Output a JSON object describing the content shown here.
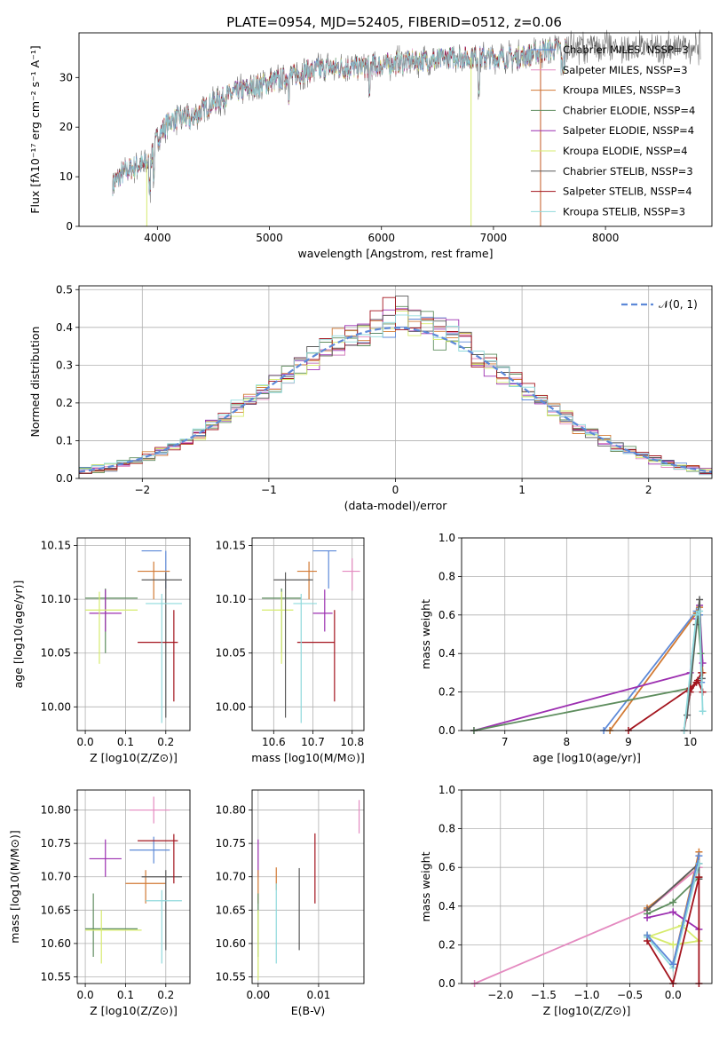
{
  "figure": {
    "title": "PLATE=0954, MJD=52405, FIBERID=0512, z=0.06"
  },
  "colors": {
    "c1": "#5d89d8",
    "c2": "#e48ac0",
    "c3": "#d27a34",
    "c4": "#5e8d5e",
    "c5": "#9c2fb0",
    "c6": "#d6eb6e",
    "c7": "#5a5a5a",
    "c8": "#a3141e",
    "c9": "#8fd9dc"
  },
  "chart_data": [
    {
      "type": "line",
      "panel": "spectrum",
      "xlabel": "wavelength [Angstrom, rest frame]",
      "ylabel": "Flux [f$\\lambda$10$^{-17}$ erg cm$^{-2}$ s$^{-1}$ A$^{-1}$]",
      "ylabel_text": "Flux [fλ10⁻¹⁷ erg cm⁻² s⁻¹ A⁻¹]",
      "xlim": [
        3300,
        8950
      ],
      "ylim": [
        0,
        39
      ],
      "xticks": [
        "4000",
        "5000",
        "6000",
        "7000",
        "8000"
      ],
      "yticks": [
        "0",
        "10",
        "20",
        "30"
      ],
      "legend": [
        "Chabrier MILES, N_SSP=3",
        "Salpeter MILES, N_SSP=3",
        "Kroupa MILES, N_SSP=3",
        "Chabrier ELODIE, N_SSP=4",
        "Salpeter ELODIE, N_SSP=4",
        "Kroupa ELODIE, N_SSP=4",
        "Chabrier STELIB, N_SSP=3",
        "Salpeter STELIB, N_SSP=4",
        "Kroupa STELIB, N_SSP=3"
      ],
      "legend_text": [
        "Chabrier MILES, NSSP=3",
        "Salpeter MILES, NSSP=3",
        "Kroupa MILES, NSSP=3",
        "Chabrier ELODIE, NSSP=4",
        "Salpeter ELODIE, NSSP=4",
        "Kroupa ELODIE, NSSP=4",
        "Chabrier STELIB, NSSP=3",
        "Salpeter STELIB, NSSP=4",
        "Kroupa STELIB, NSSP=3"
      ],
      "legend_placement": "right",
      "grid": false,
      "continuum": [
        [
          3600,
          8.5
        ],
        [
          3700,
          11
        ],
        [
          3800,
          12
        ],
        [
          3900,
          12.5
        ],
        [
          3950,
          14
        ],
        [
          4000,
          18
        ],
        [
          4100,
          21
        ],
        [
          4200,
          22
        ],
        [
          4300,
          21.5
        ],
        [
          4400,
          23.5
        ],
        [
          4500,
          25
        ],
        [
          4700,
          27
        ],
        [
          5000,
          29
        ],
        [
          5300,
          31
        ],
        [
          5500,
          32
        ],
        [
          5800,
          32
        ],
        [
          6000,
          32.5
        ],
        [
          6300,
          33.5
        ],
        [
          6500,
          33.5
        ],
        [
          6600,
          34
        ],
        [
          6800,
          34
        ],
        [
          7000,
          34
        ],
        [
          7200,
          34
        ],
        [
          7400,
          35
        ],
        [
          7600,
          36
        ]
      ],
      "data_end": 8850
    },
    {
      "type": "line",
      "panel": "residuals",
      "xlabel": "(data-model)/error",
      "ylabel": "Normed distribution",
      "xlim": [
        -2.5,
        2.5
      ],
      "ylim": [
        0,
        0.51
      ],
      "xticks": [
        "−2",
        "−1",
        "0",
        "1",
        "2"
      ],
      "yticks": [
        "0.0",
        "0.1",
        "0.2",
        "0.3",
        "0.4",
        "0.5"
      ],
      "legend": [
        "𝒩(0, 1)"
      ],
      "legend_placement": "top-right",
      "grid": true,
      "bin_width": 0.1
    },
    {
      "type": "scatter",
      "panel": "Z-age",
      "xlabel": "Z [log10(Z/Z⊙)]",
      "ylabel": "age  [log10(age/yr)]",
      "xlim": [
        -0.02,
        0.26
      ],
      "ylim": [
        9.978,
        10.157
      ],
      "xticks": [
        "0.0",
        "0.1",
        "0.2"
      ],
      "yticks": [
        "10.00",
        "10.05",
        "10.10",
        "10.15"
      ],
      "grid": true,
      "points": [
        {
          "x": 0.2,
          "y": 10.145,
          "xerr": [
            0.14,
            0.19
          ],
          "yerr": [
            10.11,
            10.145
          ]
        },
        {
          "x": 0.17,
          "y": 10.126,
          "xerr": [
            0.13,
            0.21
          ],
          "yerr": [
            10.1,
            10.135
          ]
        },
        {
          "x": 0.05,
          "y": 10.101,
          "xerr": [
            0.0,
            0.13
          ],
          "yerr": [
            10.05,
            10.11
          ]
        },
        {
          "x": 0.05,
          "y": 10.087,
          "xerr": [
            0.01,
            0.09
          ],
          "yerr": [
            10.07,
            10.109
          ]
        },
        {
          "x": 0.035,
          "y": 10.09,
          "xerr": [
            0.0,
            0.13
          ],
          "yerr": [
            10.04,
            10.107
          ]
        },
        {
          "x": 0.2,
          "y": 10.118,
          "xerr": [
            0.14,
            0.24
          ],
          "yerr": [
            9.99,
            10.125
          ]
        },
        {
          "x": 0.22,
          "y": 10.06,
          "xerr": [
            0.13,
            0.23
          ],
          "yerr": [
            10.005,
            10.09
          ]
        },
        {
          "x": 0.19,
          "y": 10.096,
          "xerr": [
            0.15,
            0.24
          ],
          "yerr": [
            9.985,
            10.105
          ]
        }
      ]
    },
    {
      "type": "scatter",
      "panel": "mass-age",
      "xlabel": "mass [log10(M/M⊙)]",
      "xlim": [
        10.545,
        10.83
      ],
      "ylim": [
        9.978,
        10.157
      ],
      "xticks": [
        "10.6",
        "10.7",
        "10.8"
      ],
      "grid": true,
      "points": [
        {
          "x": 10.74,
          "y": 10.145,
          "xerr": [
            10.7,
            10.76
          ],
          "yerr": [
            10.11,
            10.145
          ]
        },
        {
          "x": 10.8,
          "y": 10.126,
          "xerr": [
            10.775,
            10.82
          ],
          "yerr": [
            10.108,
            10.138
          ]
        },
        {
          "x": 10.69,
          "y": 10.126,
          "xerr": [
            10.66,
            10.71
          ],
          "yerr": [
            10.1,
            10.135
          ]
        },
        {
          "x": 10.62,
          "y": 10.101,
          "xerr": [
            10.57,
            10.67
          ],
          "yerr": [
            10.05,
            10.11
          ]
        },
        {
          "x": 10.73,
          "y": 10.087,
          "xerr": [
            10.7,
            10.75
          ],
          "yerr": [
            10.07,
            10.109
          ]
        },
        {
          "x": 10.62,
          "y": 10.09,
          "xerr": [
            10.57,
            10.65
          ],
          "yerr": [
            10.04,
            10.107
          ]
        },
        {
          "x": 10.63,
          "y": 10.118,
          "xerr": [
            10.6,
            10.7
          ],
          "yerr": [
            9.99,
            10.125
          ]
        },
        {
          "x": 10.755,
          "y": 10.06,
          "xerr": [
            10.66,
            10.755
          ],
          "yerr": [
            10.005,
            10.09
          ]
        },
        {
          "x": 10.67,
          "y": 10.096,
          "xerr": [
            10.65,
            10.71
          ],
          "yerr": [
            9.985,
            10.105
          ]
        }
      ]
    },
    {
      "type": "line",
      "panel": "age-weight",
      "xlabel": "age  [log10(age/yr)]",
      "ylabel": "mass weight",
      "xlim": [
        6.3,
        10.35
      ],
      "ylim": [
        0,
        1.0
      ],
      "xticks": [
        "7",
        "8",
        "9",
        "10"
      ],
      "yticks": [
        "0.0",
        "0.2",
        "0.4",
        "0.6",
        "0.8",
        "1.0"
      ],
      "grid": true,
      "series": [
        {
          "points": [
            [
              8.6,
              0
            ],
            [
              10.1,
              0.62
            ],
            [
              10.15,
              0.6
            ],
            [
              10.18,
              0.25
            ]
          ]
        },
        {
          "points": [
            [
              8.7,
              0
            ],
            [
              10.1,
              0.61
            ],
            [
              10.15,
              0.64
            ],
            [
              10.2,
              0.3
            ]
          ]
        },
        {
          "points": [
            [
              6.5,
              0
            ],
            [
              10.0,
              0.3
            ],
            [
              10.1,
              0.58
            ],
            [
              10.15,
              0.65
            ],
            [
              10.2,
              0.35
            ]
          ]
        },
        {
          "points": [
            [
              6.5,
              0
            ],
            [
              10.0,
              0.22
            ],
            [
              10.12,
              0.6
            ],
            [
              10.17,
              0.4
            ]
          ]
        },
        {
          "points": [
            [
              9.9,
              0
            ],
            [
              10.0,
              0.2
            ],
            [
              10.1,
              0.25
            ],
            [
              10.18,
              0.3
            ]
          ]
        },
        {
          "points": [
            [
              9.95,
              0.08
            ],
            [
              10.1,
              0.55
            ],
            [
              10.15,
              0.68
            ],
            [
              10.19,
              0.27
            ]
          ]
        },
        {
          "points": [
            [
              9.0,
              0
            ],
            [
              10.0,
              0.22
            ],
            [
              10.12,
              0.26
            ],
            [
              10.2,
              0.2
            ]
          ]
        },
        {
          "points": [
            [
              9.9,
              0
            ],
            [
              10.1,
              0.6
            ],
            [
              10.15,
              0.62
            ],
            [
              10.2,
              0.1
            ]
          ]
        }
      ]
    },
    {
      "type": "scatter",
      "panel": "Z-mass",
      "xlabel": "Z [log10(Z/Z⊙)]",
      "ylabel": "mass [log10(M/M⊙)]",
      "xlim": [
        -0.02,
        0.26
      ],
      "ylim": [
        10.54,
        10.83
      ],
      "xticks": [
        "0.0",
        "0.1",
        "0.2"
      ],
      "yticks": [
        "10.55",
        "10.60",
        "10.65",
        "10.70",
        "10.75",
        "10.80"
      ],
      "grid": true,
      "points": [
        {
          "x": 0.17,
          "y": 10.8,
          "xerr": [
            0.11,
            0.21
          ],
          "yerr": [
            10.78,
            10.82
          ]
        },
        {
          "x": 0.17,
          "y": 10.74,
          "xerr": [
            0.11,
            0.21
          ],
          "yerr": [
            10.72,
            10.76
          ]
        },
        {
          "x": 0.05,
          "y": 10.727,
          "xerr": [
            0.01,
            0.09
          ],
          "yerr": [
            10.7,
            10.756
          ]
        },
        {
          "x": 0.15,
          "y": 10.69,
          "xerr": [
            0.1,
            0.2
          ],
          "yerr": [
            10.66,
            10.71
          ]
        },
        {
          "x": 0.02,
          "y": 10.622,
          "xerr": [
            0.0,
            0.13
          ],
          "yerr": [
            10.58,
            10.675
          ]
        },
        {
          "x": 0.04,
          "y": 10.62,
          "xerr": [
            0.0,
            0.14
          ],
          "yerr": [
            10.57,
            10.65
          ]
        },
        {
          "x": 0.2,
          "y": 10.7,
          "xerr": [
            0.14,
            0.24
          ],
          "yerr": [
            10.59,
            10.71
          ]
        },
        {
          "x": 0.22,
          "y": 10.754,
          "xerr": [
            0.13,
            0.23
          ],
          "yerr": [
            10.69,
            10.764
          ]
        },
        {
          "x": 0.19,
          "y": 10.664,
          "xerr": [
            0.15,
            0.24
          ],
          "yerr": [
            10.57,
            10.68
          ]
        }
      ]
    },
    {
      "type": "scatter",
      "panel": "EBV-mass",
      "xlabel": "E(B-V)",
      "xlim": [
        -0.001,
        0.0175
      ],
      "ylim": [
        10.54,
        10.83
      ],
      "xticks": [
        "0.00",
        "0.01"
      ],
      "grid": true,
      "points": [
        {
          "x": 0.0,
          "y": 10.73,
          "yerr": [
            10.7,
            10.756
          ]
        },
        {
          "x": 0.0,
          "y": 10.69,
          "yerr": [
            10.66,
            10.71
          ]
        },
        {
          "x": 0.0,
          "y": 10.62,
          "yerr": [
            10.58,
            10.675
          ]
        },
        {
          "x": 0.0,
          "y": 10.6,
          "yerr": [
            10.545,
            10.65
          ]
        },
        {
          "x": 0.003,
          "y": 10.7,
          "yerr": [
            10.68,
            10.714
          ]
        },
        {
          "x": 0.003,
          "y": 10.67,
          "yerr": [
            10.57,
            10.69
          ]
        },
        {
          "x": 0.0068,
          "y": 10.66,
          "yerr": [
            10.59,
            10.713
          ]
        },
        {
          "x": 0.0094,
          "y": 10.72,
          "yerr": [
            10.66,
            10.765
          ]
        },
        {
          "x": 0.0167,
          "y": 10.79,
          "yerr": [
            10.765,
            10.815
          ]
        }
      ]
    },
    {
      "type": "line",
      "panel": "Z-weight",
      "xlabel": "Z [log10(Z/Z⊙)]",
      "ylabel": "mass weight",
      "xlim": [
        -2.45,
        0.45
      ],
      "ylim": [
        0,
        1.0
      ],
      "xticks": [
        "−2.0",
        "−1.5",
        "−1.0",
        "−0.5",
        "0.0"
      ],
      "yticks": [
        "0.0",
        "0.2",
        "0.4",
        "0.6",
        "0.8",
        "1.0"
      ],
      "grid": true,
      "series": [
        {
          "points": [
            [
              -0.3,
              0.39
            ],
            [
              0.3,
              0.6
            ],
            [
              0.3,
              0.68
            ],
            [
              0.0,
              0.1
            ]
          ]
        },
        {
          "points": [
            [
              -2.3,
              0.0
            ],
            [
              -0.3,
              0.38
            ],
            [
              0.3,
              0.6
            ]
          ]
        },
        {
          "points": [
            [
              -0.3,
              0.38
            ],
            [
              0.3,
              0.62
            ],
            [
              0.3,
              0.54
            ]
          ]
        },
        {
          "points": [
            [
              -0.3,
              0.36
            ],
            [
              0.0,
              0.42
            ],
            [
              0.3,
              0.55
            ]
          ]
        },
        {
          "points": [
            [
              -0.3,
              0.34
            ],
            [
              0.0,
              0.37
            ],
            [
              0.3,
              0.28
            ]
          ]
        },
        {
          "points": [
            [
              -0.3,
              0.25
            ],
            [
              0.0,
              0.2
            ],
            [
              0.3,
              0.22
            ],
            [
              0.1,
              0.3
            ],
            [
              -0.3,
              0.24
            ]
          ]
        },
        {
          "points": [
            [
              -0.3,
              0.24
            ],
            [
              0.0,
              0.08
            ],
            [
              0.3,
              0.62
            ]
          ]
        },
        {
          "points": [
            [
              -0.3,
              0.22
            ],
            [
              0.0,
              0.0
            ],
            [
              0.3,
              0.55
            ],
            [
              0.3,
              0.0
            ]
          ]
        },
        {
          "points": [
            [
              -0.3,
              0.25
            ],
            [
              0.0,
              0.1
            ],
            [
              0.3,
              0.66
            ]
          ]
        }
      ]
    }
  ]
}
